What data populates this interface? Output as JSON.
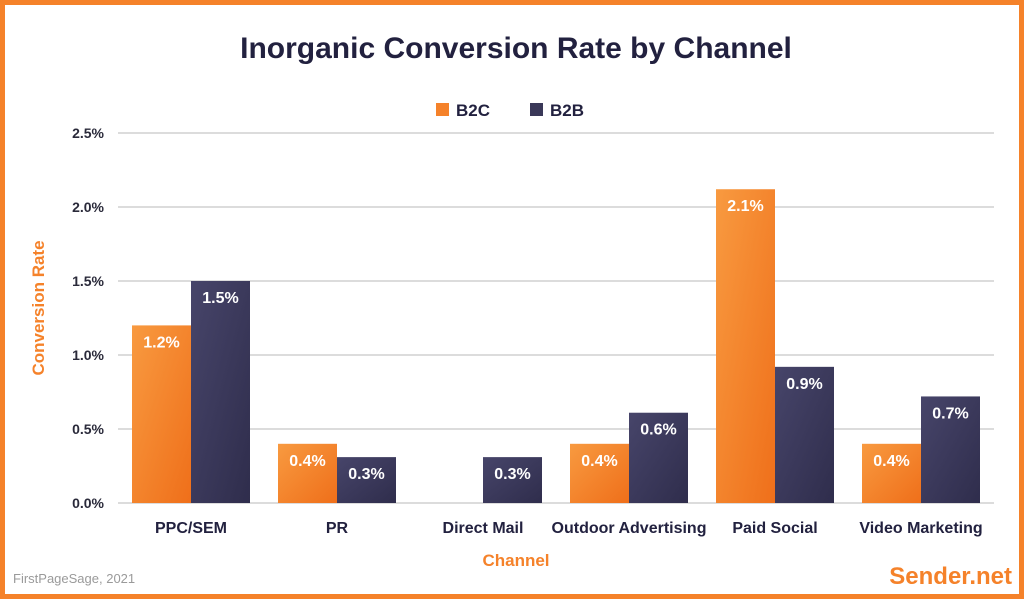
{
  "chart_data": {
    "type": "bar",
    "title": "Inorganic Conversion Rate by Channel",
    "xlabel": "Channel",
    "ylabel": "Conversion Rate",
    "ylim": [
      0,
      2.5
    ],
    "yticks": [
      "0.0%",
      "0.5%",
      "1.0%",
      "1.5%",
      "2.0%",
      "2.5%"
    ],
    "grid": true,
    "legend": "top-center",
    "categories": [
      "PPC/SEM",
      "PR",
      "Direct Mail",
      "Outdoor Advertising",
      "Paid Social",
      "Video Marketing"
    ],
    "series": [
      {
        "name": "B2C",
        "color": "#f5822a",
        "values": [
          1.2,
          0.4,
          null,
          0.4,
          2.12,
          0.4
        ],
        "labels": [
          "1.2%",
          "0.4%",
          "",
          "0.4%",
          "2.1%",
          "0.4%"
        ]
      },
      {
        "name": "B2B",
        "color": "#3a3858",
        "values": [
          1.5,
          0.31,
          0.31,
          0.61,
          0.92,
          0.72
        ],
        "labels": [
          "1.5%",
          "0.3%",
          "0.3%",
          "0.6%",
          "0.9%",
          "0.7%"
        ]
      }
    ]
  },
  "footer": {
    "source": "FirstPageSage, 2021",
    "brand": "Sender.net"
  }
}
